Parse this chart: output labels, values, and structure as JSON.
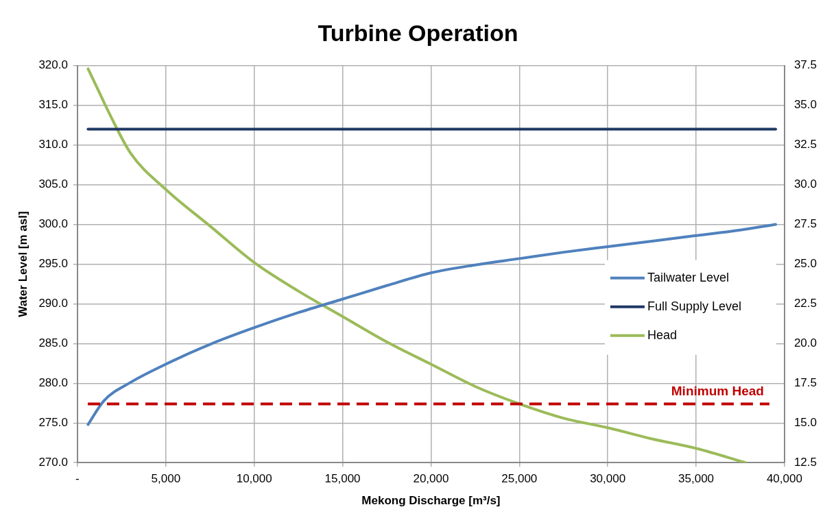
{
  "chart_data": {
    "type": "line",
    "title": "Turbine Operation",
    "xlabel": "Mekong Discharge [m³/s]",
    "ylabel": "Water Level [m asl]",
    "xlim": [
      0,
      40000
    ],
    "xticks": [
      {
        "value": 0,
        "label": "-"
      },
      {
        "value": 5000,
        "label": "5,000"
      },
      {
        "value": 10000,
        "label": "10,000"
      },
      {
        "value": 15000,
        "label": "15,000"
      },
      {
        "value": 20000,
        "label": "20,000"
      },
      {
        "value": 25000,
        "label": "25,000"
      },
      {
        "value": 30000,
        "label": "30,000"
      },
      {
        "value": 35000,
        "label": "35,000"
      },
      {
        "value": 40000,
        "label": "40,000"
      }
    ],
    "ylim": [
      270,
      320
    ],
    "yticks": [
      {
        "value": 270,
        "label": "270.0"
      },
      {
        "value": 275,
        "label": "275.0"
      },
      {
        "value": 280,
        "label": "280.0"
      },
      {
        "value": 285,
        "label": "285.0"
      },
      {
        "value": 290,
        "label": "290.0"
      },
      {
        "value": 295,
        "label": "295.0"
      },
      {
        "value": 300,
        "label": "300.0"
      },
      {
        "value": 305,
        "label": "305.0"
      },
      {
        "value": 310,
        "label": "310.0"
      },
      {
        "value": 315,
        "label": "315.0"
      },
      {
        "value": 320,
        "label": "320.0"
      }
    ],
    "y2lim": [
      12.5,
      37.5
    ],
    "y2ticks": [
      {
        "value": 12.5,
        "label": "12.5"
      },
      {
        "value": 15,
        "label": "15.0"
      },
      {
        "value": 17.5,
        "label": "17.5"
      },
      {
        "value": 20,
        "label": "20.0"
      },
      {
        "value": 22.5,
        "label": "22.5"
      },
      {
        "value": 25,
        "label": "25.0"
      },
      {
        "value": 27.5,
        "label": "27.5"
      },
      {
        "value": 30,
        "label": "30.0"
      },
      {
        "value": 32.5,
        "label": "32.5"
      },
      {
        "value": 35,
        "label": "35.0"
      },
      {
        "value": 37.5,
        "label": "37.5"
      }
    ],
    "series": [
      {
        "name": "Tailwater Level",
        "color": "#4f81bd",
        "x": [
          600,
          1500,
          3000,
          5000,
          7500,
          10000,
          12500,
          15000,
          17500,
          20000,
          22500,
          25000,
          27500,
          30000,
          32500,
          35000,
          37500,
          39500
        ],
        "values": [
          274.8,
          277.8,
          280.1,
          282.4,
          284.9,
          287.0,
          288.9,
          290.6,
          292.3,
          293.9,
          294.9,
          295.7,
          296.5,
          297.2,
          297.9,
          298.6,
          299.3,
          300.0
        ]
      },
      {
        "name": "Full Supply Level",
        "color": "#1f3864",
        "x": [
          600,
          39500
        ],
        "values": [
          312.0,
          312.0
        ]
      },
      {
        "name": "Head",
        "color": "#9bbb59",
        "axis": "y2",
        "x": [
          600,
          1200,
          1800,
          3000,
          5000,
          7500,
          10000,
          12500,
          15000,
          17500,
          20000,
          22500,
          25000,
          27500,
          30000,
          32500,
          35000,
          37800
        ],
        "values": [
          37.3,
          35.9,
          34.5,
          32.0,
          29.7,
          27.4,
          25.1,
          23.3,
          21.7,
          20.1,
          18.7,
          17.3,
          16.2,
          15.3,
          14.7,
          14.0,
          13.4,
          12.5
        ]
      }
    ],
    "ref_lines": [
      {
        "axis": "y2",
        "value": 16.2,
        "label": "Minimum Head",
        "color": "#c00000",
        "line_style": "dashed"
      }
    ],
    "grid": true,
    "legend": "right",
    "marker": "none",
    "line_style": "solid"
  }
}
